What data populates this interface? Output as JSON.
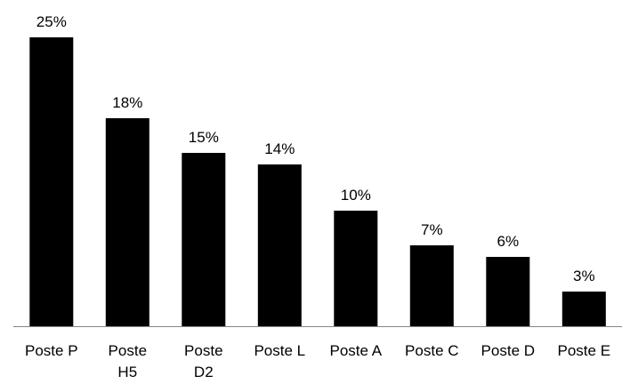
{
  "chart_data": {
    "type": "bar",
    "title": "",
    "xlabel": "",
    "ylabel": "",
    "categories": [
      [
        "Poste P"
      ],
      [
        "Poste",
        "H5"
      ],
      [
        "Poste",
        "D2"
      ],
      [
        "Poste L"
      ],
      [
        "Poste A"
      ],
      [
        "Poste C"
      ],
      [
        "Poste D"
      ],
      [
        "Poste E"
      ]
    ],
    "values": [
      25,
      18,
      15,
      14,
      10,
      7,
      6,
      3
    ],
    "value_labels": [
      "25%",
      "18%",
      "15%",
      "14%",
      "10%",
      "7%",
      "6%",
      "3%"
    ],
    "ylim": [
      0,
      25
    ],
    "grid": false,
    "legend": "none",
    "bar_color": "#000000",
    "axis_color": "#868686"
  }
}
